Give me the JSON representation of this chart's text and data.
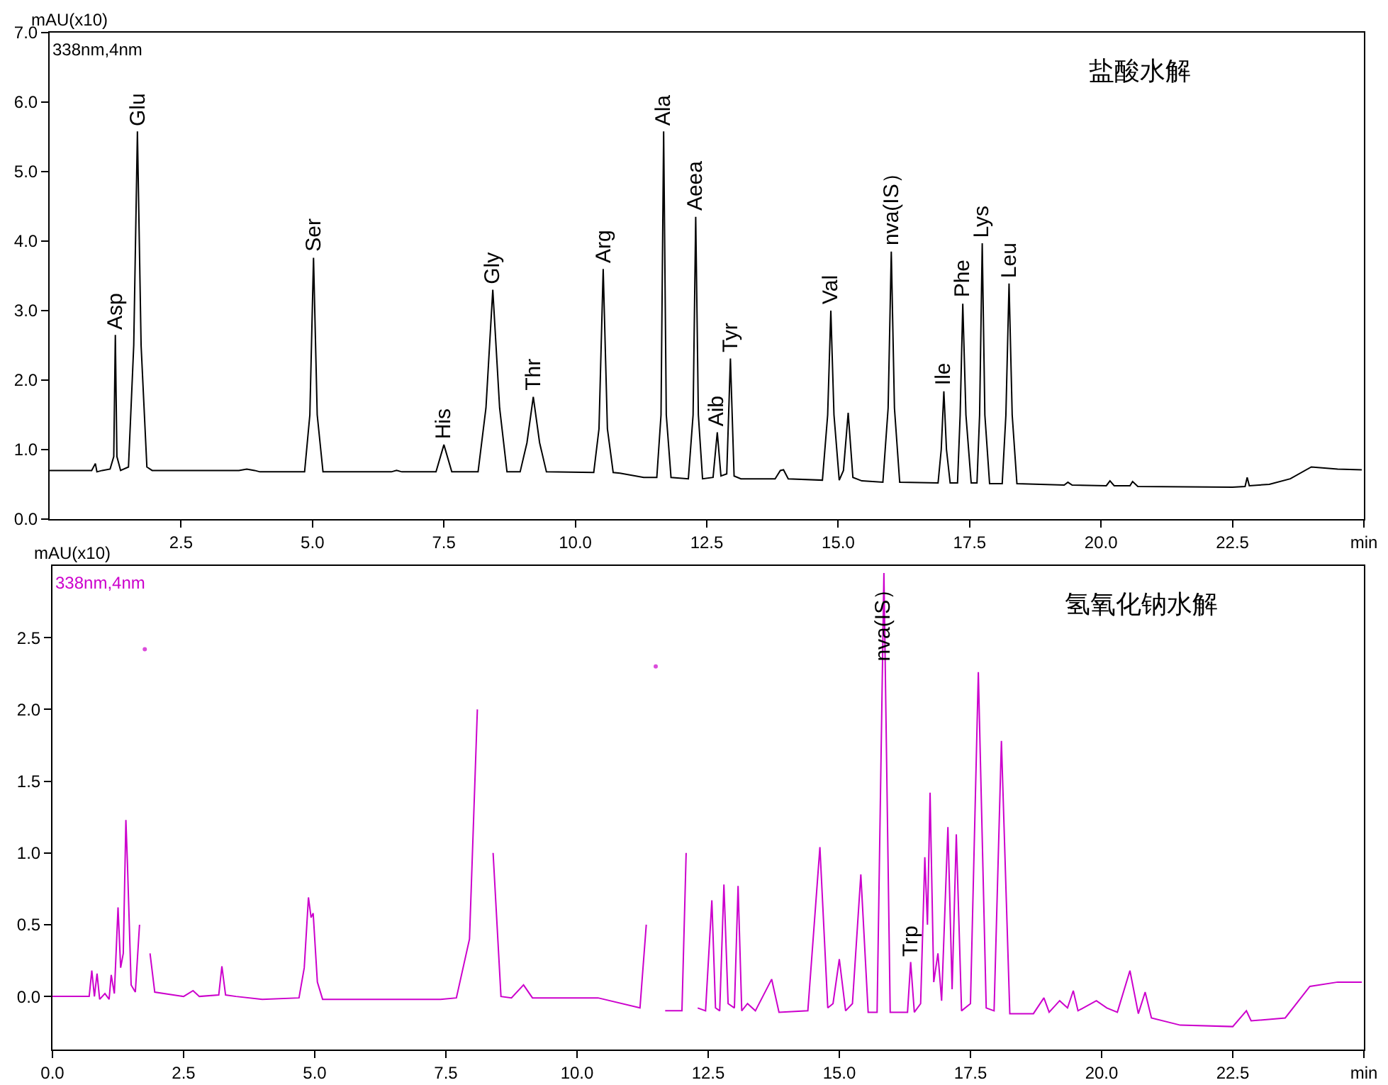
{
  "chart_data": [
    {
      "type": "line",
      "title": "盐酸水解",
      "ylabel": "mAU(x10)",
      "annotations": [
        "338nm,4nm",
        {
          "text": "Asp",
          "x": 1.25,
          "y": 2.65
        },
        {
          "text": "Glu",
          "x": 1.67,
          "y": 5.58
        },
        {
          "text": "Ser",
          "x": 5.02,
          "y": 3.76
        },
        {
          "text": "His",
          "x": 7.5,
          "y": 1.07
        },
        {
          "text": "Gly",
          "x": 8.43,
          "y": 3.3
        },
        {
          "text": "Thr",
          "x": 9.2,
          "y": 1.76
        },
        {
          "text": "Arg",
          "x": 10.53,
          "y": 3.6
        },
        {
          "text": "Ala",
          "x": 11.68,
          "y": 5.58
        },
        {
          "text": "Aeea",
          "x": 12.29,
          "y": 4.35
        },
        {
          "text": "Aib",
          "x": 12.7,
          "y": 1.25
        },
        {
          "text": "Tyr",
          "x": 12.95,
          "y": 2.31
        },
        {
          "text": "Val",
          "x": 14.86,
          "y": 3.0
        },
        {
          "text": "nva(IS）",
          "x": 16.01,
          "y": 3.85
        },
        {
          "text": "Ile",
          "x": 17.01,
          "y": 1.84
        },
        {
          "text": "Phe",
          "x": 17.37,
          "y": 3.1
        },
        {
          "text": "Lys",
          "x": 17.74,
          "y": 3.97
        },
        {
          "text": "Leu",
          "x": 18.25,
          "y": 3.39
        }
      ],
      "xlim": [
        0,
        25
      ],
      "ylim": [
        0,
        7
      ],
      "xticks": [
        2.5,
        {
          "value": 5,
          "label": "5.0"
        },
        7.5,
        {
          "value": 10,
          "label": "10.0"
        },
        12.5,
        {
          "value": 15,
          "label": "15.0"
        },
        17.5,
        {
          "value": 20,
          "label": "20.0"
        },
        22.5,
        {
          "value": 25,
          "label": "min"
        }
      ],
      "yticks": [
        {
          "value": 0,
          "label": "0.0"
        },
        {
          "value": 1,
          "label": "1.0"
        },
        {
          "value": 2,
          "label": "2.0"
        },
        {
          "value": 3,
          "label": "3.0"
        },
        {
          "value": 4,
          "label": "4.0"
        },
        {
          "value": 5,
          "label": "5.0"
        },
        {
          "value": 6,
          "label": "6.0"
        },
        {
          "value": 7,
          "label": "7.0"
        }
      ],
      "marker": "none",
      "line_style": "solid",
      "series": [
        {
          "color": "#000000",
          "x": [
            0,
            0.8,
            0.87,
            0.9,
            1.0,
            1.15,
            1.22,
            1.25,
            1.28,
            1.35,
            1.5,
            1.6,
            1.67,
            1.74,
            1.85,
            1.95,
            3.6,
            3.75,
            3.9,
            4.0,
            4.85,
            4.95,
            5.02,
            5.09,
            5.2,
            6.5,
            6.6,
            6.7,
            7.35,
            7.5,
            7.65,
            8.15,
            8.3,
            8.43,
            8.56,
            8.7,
            8.95,
            9.08,
            9.2,
            9.32,
            9.45,
            10.35,
            10.45,
            10.53,
            10.61,
            10.72,
            10.85,
            11.3,
            11.55,
            11.63,
            11.68,
            11.73,
            11.82,
            12.15,
            12.24,
            12.29,
            12.34,
            12.42,
            12.62,
            12.7,
            12.77,
            12.88,
            12.95,
            13.02,
            13.15,
            13.8,
            13.9,
            13.96,
            14.05,
            14.7,
            14.8,
            14.86,
            14.92,
            15.02,
            15.1,
            15.19,
            15.28,
            15.45,
            15.85,
            15.95,
            16.01,
            16.07,
            16.17,
            16.9,
            16.96,
            17.01,
            17.06,
            17.13,
            17.27,
            17.32,
            17.37,
            17.43,
            17.53,
            17.64,
            17.69,
            17.74,
            17.79,
            17.88,
            18.12,
            18.19,
            18.25,
            18.31,
            18.4,
            19.3,
            19.37,
            19.45,
            20.1,
            20.17,
            20.25,
            20.55,
            20.6,
            20.7,
            22.5,
            22.74,
            22.78,
            22.82,
            23.2,
            23.6,
            24.0,
            24.5,
            24.96
          ],
          "values": [
            0.7,
            0.7,
            0.8,
            0.68,
            0.7,
            0.72,
            0.9,
            2.65,
            0.9,
            0.7,
            0.75,
            2.5,
            5.58,
            2.5,
            0.75,
            0.7,
            0.7,
            0.72,
            0.7,
            0.68,
            0.68,
            1.5,
            3.76,
            1.5,
            0.68,
            0.68,
            0.7,
            0.68,
            0.68,
            1.07,
            0.68,
            0.68,
            1.6,
            3.3,
            1.6,
            0.68,
            0.68,
            1.1,
            1.76,
            1.1,
            0.68,
            0.67,
            1.3,
            3.6,
            1.3,
            0.67,
            0.66,
            0.6,
            0.6,
            1.5,
            5.58,
            1.5,
            0.6,
            0.58,
            1.5,
            4.35,
            1.5,
            0.58,
            0.6,
            1.25,
            0.62,
            0.65,
            2.31,
            0.62,
            0.58,
            0.58,
            0.7,
            0.71,
            0.58,
            0.56,
            1.5,
            3.0,
            1.5,
            0.56,
            0.7,
            1.53,
            0.6,
            0.55,
            0.53,
            1.6,
            3.85,
            1.6,
            0.53,
            0.52,
            1.0,
            1.84,
            1.0,
            0.52,
            0.52,
            1.5,
            3.1,
            1.5,
            0.52,
            0.52,
            1.5,
            3.97,
            1.5,
            0.51,
            0.51,
            1.5,
            3.39,
            1.5,
            0.51,
            0.49,
            0.53,
            0.49,
            0.48,
            0.55,
            0.48,
            0.48,
            0.54,
            0.47,
            0.46,
            0.47,
            0.6,
            0.48,
            0.5,
            0.58,
            0.75,
            0.72,
            0.71
          ]
        }
      ]
    },
    {
      "type": "line",
      "title": "氢氧化钠水解",
      "ylabel": "mAU(x10)",
      "annotations": [
        "338nm,4nm",
        {
          "text": "nva(IS）",
          "x": 15.85,
          "y": 2.3
        },
        {
          "text": "Trp",
          "x": 16.36,
          "y": 0.24
        }
      ],
      "xlim": [
        0,
        25
      ],
      "ylim": [
        -0.37,
        3.0
      ],
      "xticks": [
        {
          "value": 0,
          "label": "0.0"
        },
        2.5,
        {
          "value": 5,
          "label": "5.0"
        },
        7.5,
        {
          "value": 10,
          "label": "10.0"
        },
        12.5,
        {
          "value": 15,
          "label": "15.0"
        },
        17.5,
        {
          "value": 20,
          "label": "20.0"
        },
        22.5,
        {
          "value": 25,
          "label": "min"
        }
      ],
      "yticks": [
        {
          "value": 0,
          "label": "0.0"
        },
        0.5,
        {
          "value": 1,
          "label": "1.0"
        },
        1.5,
        {
          "value": 2,
          "label": "2.0"
        },
        2.5
      ],
      "marker": "none",
      "line_style": "solid",
      "series": [
        {
          "color": "#cc00cc",
          "x": [
            0,
            0.7,
            0.75,
            0.8,
            0.85,
            0.9,
            1.0,
            1.08,
            1.12,
            1.18,
            1.25,
            1.3,
            1.35,
            1.4,
            1.43,
            1.5,
            1.58,
            1.66,
            1.7,
            1.76,
            1.8,
            1.86,
            1.95,
            2.5,
            2.68,
            2.8,
            3.17,
            3.23,
            3.3,
            3.5,
            4.0,
            4.7,
            4.8,
            4.88,
            4.93,
            4.97,
            5.05,
            5.15,
            7.4,
            7.7,
            7.95,
            8.1,
            8.2,
            8.3,
            8.4,
            8.55,
            8.75,
            8.98,
            9.15,
            10.4,
            11.2,
            11.32,
            11.44,
            11.5,
            11.56,
            11.68,
            12.0,
            12.08,
            12.15,
            12.22,
            12.3,
            12.45,
            12.57,
            12.64,
            12.72,
            12.8,
            12.88,
            13.0,
            13.07,
            13.14,
            13.25,
            13.4,
            13.71,
            13.85,
            14.4,
            14.63,
            14.78,
            14.88,
            15.0,
            15.12,
            15.25,
            15.41,
            15.55,
            15.72,
            15.85,
            15.97,
            16.3,
            16.36,
            16.43,
            16.55,
            16.63,
            16.68,
            16.73,
            16.8,
            16.88,
            16.95,
            17.07,
            17.15,
            17.23,
            17.33,
            17.5,
            17.65,
            17.8,
            17.95,
            18.09,
            18.25,
            18.7,
            18.9,
            19.0,
            19.2,
            19.35,
            19.46,
            19.55,
            19.9,
            20.1,
            20.3,
            20.54,
            20.7,
            20.83,
            20.95,
            21.5,
            22.5,
            22.76,
            22.85,
            23.5,
            23.97,
            24.5,
            24.96
          ],
          "values": [
            0.0,
            0.0,
            0.18,
            0.0,
            0.16,
            -0.02,
            0.02,
            -0.02,
            0.15,
            0.02,
            0.62,
            0.2,
            0.3,
            1.23,
            0.92,
            0.08,
            0.03,
            0.5,
            null,
            2.42,
            null,
            0.3,
            0.03,
            0.0,
            0.04,
            0.0,
            0.01,
            0.21,
            0.01,
            0.0,
            -0.02,
            -0.01,
            0.2,
            0.69,
            0.55,
            0.58,
            0.1,
            -0.02,
            -0.02,
            -0.01,
            0.4,
            2.0,
            null,
            null,
            1.0,
            0.0,
            -0.01,
            0.08,
            -0.01,
            -0.01,
            -0.08,
            0.5,
            null,
            2.3,
            null,
            -0.1,
            -0.1,
            1.0,
            null,
            null,
            -0.08,
            -0.1,
            0.67,
            -0.08,
            -0.1,
            0.78,
            -0.05,
            -0.08,
            0.77,
            -0.1,
            -0.05,
            -0.1,
            0.12,
            -0.11,
            -0.1,
            1.04,
            -0.08,
            -0.05,
            0.26,
            -0.1,
            -0.05,
            0.85,
            -0.11,
            -0.11,
            2.95,
            -0.11,
            -0.11,
            0.24,
            -0.11,
            -0.05,
            0.97,
            0.5,
            1.42,
            0.1,
            0.3,
            -0.03,
            1.18,
            0.05,
            1.13,
            -0.1,
            -0.05,
            2.26,
            -0.08,
            -0.1,
            1.78,
            -0.12,
            -0.12,
            -0.01,
            -0.11,
            -0.03,
            -0.08,
            0.04,
            -0.1,
            -0.03,
            -0.08,
            -0.11,
            0.18,
            -0.12,
            0.03,
            -0.15,
            -0.2,
            -0.21,
            -0.1,
            -0.17,
            -0.15,
            0.07,
            0.1,
            0.1
          ]
        }
      ]
    }
  ]
}
